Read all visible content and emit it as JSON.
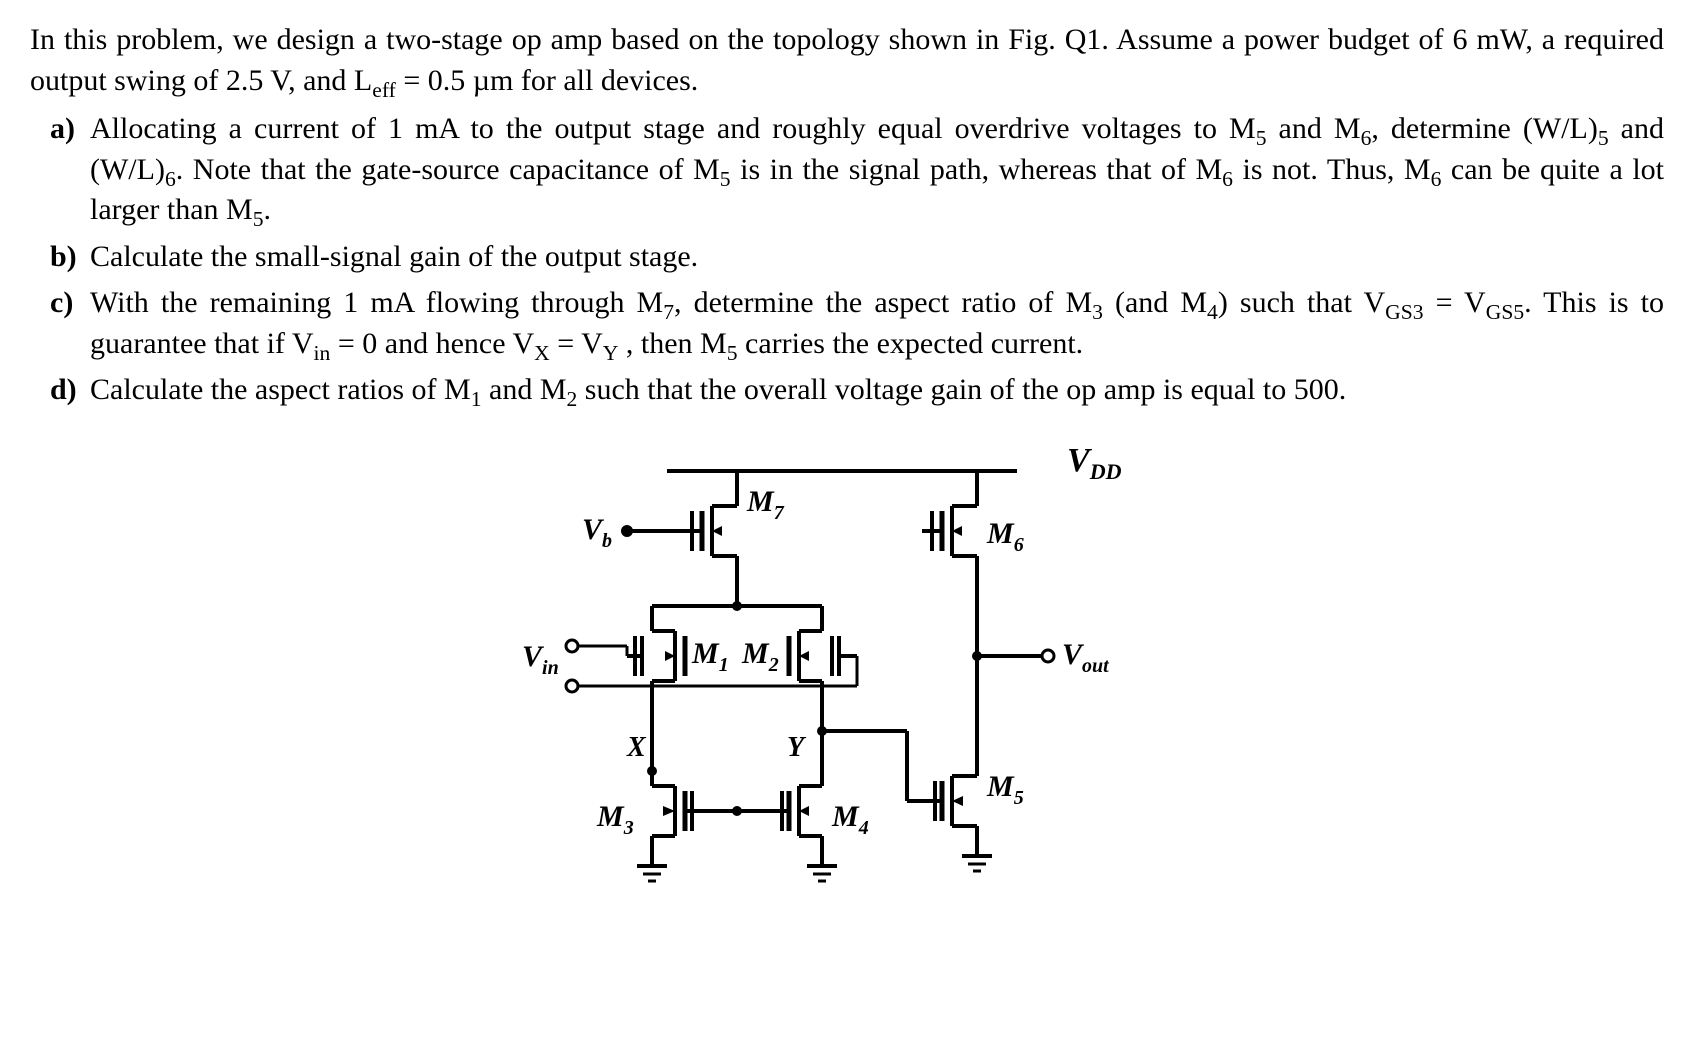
{
  "problem": {
    "intro_html": "In this problem, we design a two-stage op amp based on the topology shown in Fig. Q1. Assume a power budget of 6 mW, a required output swing of 2.5 V, and L<span class=\"sub-text\">eff</span> = 0.5 µm for all devices.",
    "parts": [
      {
        "label": "a)",
        "text_html": "Allocating a current of 1 mA to the output stage and roughly equal overdrive voltages to M<span class=\"sub-text\">5</span> and M<span class=\"sub-text\">6</span>, determine (W/L)<span class=\"sub-text\">5</span> and (W/L)<span class=\"sub-text\">6</span>. Note that the gate-source capacitance of M<span class=\"sub-text\">5</span> is in the signal path, whereas that of M<span class=\"sub-text\">6</span> is not. Thus, M<span class=\"sub-text\">6</span> can be quite a lot larger than M<span class=\"sub-text\">5</span>."
      },
      {
        "label": "b)",
        "text_html": "Calculate the small-signal gain of the output stage."
      },
      {
        "label": "c)",
        "text_html": "With the remaining 1 mA flowing through M<span class=\"sub-text\">7</span>, determine the aspect ratio of M<span class=\"sub-text\">3</span> (and M<span class=\"sub-text\">4</span>) such that V<span class=\"sub-text\">GS3</span> = V<span class=\"sub-text\">GS5</span>. This is to guarantee that if V<span class=\"sub-text\">in</span> = 0 and hence V<span class=\"sub-text\">X</span> = V<span class=\"sub-text\">Y</span> , then M<span class=\"sub-text\">5</span> carries the expected current."
      },
      {
        "label": "d)",
        "text_html": "Calculate the aspect ratios of M<span class=\"sub-text\">1</span> and M<span class=\"sub-text\">2</span> such that the overall voltage gain of the op amp is equal to 500."
      }
    ]
  },
  "circuit": {
    "type": "schematic",
    "stroke_color": "#000000",
    "stroke_width": 4,
    "stroke_width_thin": 3,
    "font_family": "Times New Roman",
    "label_fontsize": 30,
    "sub_fontsize": 20,
    "node_dot_radius": 6,
    "open_terminal_radius": 6,
    "rails": {
      "vdd_label": "V",
      "vdd_sub": "DD"
    },
    "terminals": {
      "vb_label": "V",
      "vb_sub": "b",
      "vin_label": "V",
      "vin_sub": "in",
      "vout_label": "V",
      "vout_sub": "out"
    },
    "nodes": {
      "X_label": "X",
      "Y_label": "Y"
    },
    "transistors": [
      {
        "name": "M1",
        "type": "PMOS",
        "label": "M",
        "sub": "1"
      },
      {
        "name": "M2",
        "type": "PMOS",
        "label": "M",
        "sub": "2"
      },
      {
        "name": "M3",
        "type": "NMOS",
        "label": "M",
        "sub": "3"
      },
      {
        "name": "M4",
        "type": "NMOS",
        "label": "M",
        "sub": "4"
      },
      {
        "name": "M5",
        "type": "NMOS",
        "label": "M",
        "sub": "5"
      },
      {
        "name": "M6",
        "type": "PMOS",
        "label": "M",
        "sub": "6"
      },
      {
        "name": "M7",
        "type": "PMOS",
        "label": "M",
        "sub": "7"
      }
    ]
  }
}
